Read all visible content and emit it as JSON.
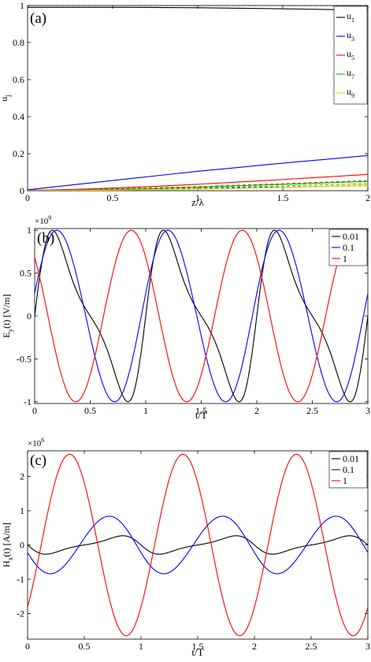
{
  "chart_data": [
    {
      "type": "line",
      "panel_label": "(a)",
      "xlabel": "z/λ",
      "ylabel": "u",
      "ylabel_sub": "j",
      "xlim": [
        0,
        2
      ],
      "ylim": [
        0,
        1
      ],
      "xticks": [
        0,
        0.5,
        1,
        1.5,
        2
      ],
      "xtick_labels": [
        "0",
        "0.5",
        "1",
        "1.5",
        "2"
      ],
      "yticks": [
        0,
        0.2,
        0.4,
        0.6,
        0.8,
        1
      ],
      "ytick_labels": [
        "0",
        "0.2",
        "0.4",
        "0.6",
        "0.8",
        "1"
      ],
      "legend_position": "top-right",
      "series": [
        {
          "name": "u1",
          "label_main": "u",
          "label_sub": "1",
          "color": "#000000",
          "x": [
            0,
            0.2,
            0.4,
            0.6,
            0.8,
            1.0,
            1.2,
            1.4,
            1.6,
            1.8,
            2.0
          ],
          "y": [
            0.99,
            0.99,
            0.99,
            0.99,
            0.989,
            0.988,
            0.986,
            0.984,
            0.981,
            0.978,
            0.975
          ]
        },
        {
          "name": "u3",
          "label_main": "u",
          "label_sub": "3",
          "color": "#0000ff",
          "x": [
            0,
            0.2,
            0.4,
            0.6,
            0.8,
            1.0,
            1.2,
            1.4,
            1.6,
            1.8,
            2.0
          ],
          "y": [
            0.005,
            0.025,
            0.045,
            0.065,
            0.085,
            0.105,
            0.122,
            0.14,
            0.157,
            0.173,
            0.19
          ]
        },
        {
          "name": "u5",
          "label_main": "u",
          "label_sub": "5",
          "color": "#ff0000",
          "x": [
            0,
            0.2,
            0.4,
            0.6,
            0.8,
            1.0,
            1.2,
            1.4,
            1.6,
            1.8,
            2.0
          ],
          "y": [
            0.002,
            0.005,
            0.011,
            0.018,
            0.026,
            0.035,
            0.045,
            0.055,
            0.066,
            0.077,
            0.088
          ]
        },
        {
          "name": "u7",
          "label_main": "u",
          "label_sub": "7",
          "color": "#00c000",
          "x": [
            0,
            0.2,
            0.4,
            0.6,
            0.8,
            1.0,
            1.2,
            1.4,
            1.6,
            1.8,
            2.0
          ],
          "y": [
            0.001,
            0.002,
            0.005,
            0.009,
            0.014,
            0.019,
            0.025,
            0.031,
            0.037,
            0.044,
            0.05
          ]
        },
        {
          "name": "u9",
          "label_main": "u",
          "label_sub": "9",
          "color": "#ffc000",
          "x": [
            0,
            0.2,
            0.4,
            0.6,
            0.8,
            1.0,
            1.2,
            1.4,
            1.6,
            1.8,
            2.0
          ],
          "y": [
            0.0,
            0.001,
            0.002,
            0.004,
            0.006,
            0.009,
            0.012,
            0.016,
            0.02,
            0.025,
            0.03
          ]
        }
      ],
      "dashed_series": [
        {
          "color": "#000000",
          "x": [
            0,
            2
          ],
          "y": [
            1.0,
            1.0
          ]
        },
        {
          "color": "#0000ff",
          "x": [
            0,
            0.5,
            1.0,
            1.5,
            2.0
          ],
          "y": [
            0.003,
            0.008,
            0.014,
            0.02,
            0.026
          ]
        },
        {
          "color": "#ff0000",
          "x": [
            0,
            0.5,
            1.0,
            1.5,
            2.0
          ],
          "y": [
            0.002,
            0.01,
            0.022,
            0.038,
            0.055
          ]
        },
        {
          "color": "#00c000",
          "x": [
            0,
            0.5,
            1.0,
            1.5,
            2.0
          ],
          "y": [
            0.001,
            0.006,
            0.015,
            0.026,
            0.038
          ]
        },
        {
          "color": "#ffc000",
          "x": [
            0,
            0.5,
            1.0,
            1.5,
            2.0
          ],
          "y": [
            0.0,
            0.003,
            0.009,
            0.017,
            0.026
          ]
        }
      ]
    },
    {
      "type": "line",
      "panel_label": "(b)",
      "xlabel": "t/T",
      "ylabel": "E",
      "ylabel_sub": "y",
      "ylabel_tail": "(t) [V/m]",
      "exponent_label": "×10",
      "exponent_power": "9",
      "xlim": [
        0,
        3
      ],
      "ylim": [
        -1.02,
        1.02
      ],
      "xticks": [
        0,
        0.5,
        1,
        1.5,
        2,
        2.5,
        3
      ],
      "xtick_labels": [
        "0",
        "0.5",
        "1",
        "1.5",
        "2",
        "2.5",
        "3"
      ],
      "yticks": [
        -1,
        -0.5,
        0,
        0.5,
        1
      ],
      "ytick_labels": [
        "-1",
        "-0.5",
        "0",
        "0.5",
        "1"
      ],
      "legend_position": "top-right",
      "series": [
        {
          "name": "0.01",
          "color": "#000000",
          "period": 1,
          "amplitude": 1.0,
          "phase": 0.0,
          "steepness": 0.9,
          "model": "shock"
        },
        {
          "name": "0.1",
          "color": "#0000ff",
          "period": 1,
          "amplitude": 1.0,
          "phase": 0.04,
          "steepness": 0.08,
          "model": "shock"
        },
        {
          "name": "1",
          "color": "#ff0000",
          "period": 1,
          "amplitude": 1.0,
          "phase": 0.38,
          "steepness": 0.0,
          "model": "shock"
        }
      ]
    },
    {
      "type": "line",
      "panel_label": "(c)",
      "xlabel": "t/T",
      "ylabel": "H",
      "ylabel_sub": "x",
      "ylabel_tail": "(t) [A/m]",
      "exponent_label": "×10",
      "exponent_power": "6",
      "xlim": [
        0,
        3
      ],
      "ylim": [
        -2.75,
        2.75
      ],
      "xticks": [
        0,
        0.5,
        1,
        1.5,
        2,
        2.5,
        3
      ],
      "xtick_labels": [
        "0",
        "0.5",
        "1",
        "1.5",
        "2",
        "2.5",
        "3"
      ],
      "yticks": [
        -2,
        -1,
        0,
        1,
        2
      ],
      "ytick_labels": [
        "-2",
        "-1",
        "0",
        "1",
        "2"
      ],
      "legend_position": "top-right",
      "series": [
        {
          "name": "0.01",
          "color": "#000000",
          "period": 1,
          "amplitude": 0.27,
          "phase": 0.0,
          "steepness": 0.9,
          "model": "shock",
          "sign": -1
        },
        {
          "name": "0.1",
          "color": "#0000ff",
          "period": 1,
          "amplitude": 0.84,
          "phase": 0.04,
          "steepness": 0.08,
          "model": "shock",
          "sign": -1
        },
        {
          "name": "1",
          "color": "#ff0000",
          "period": 1,
          "amplitude": 2.65,
          "phase": 0.38,
          "steepness": 0.0,
          "model": "shock",
          "sign": -1
        }
      ]
    }
  ]
}
